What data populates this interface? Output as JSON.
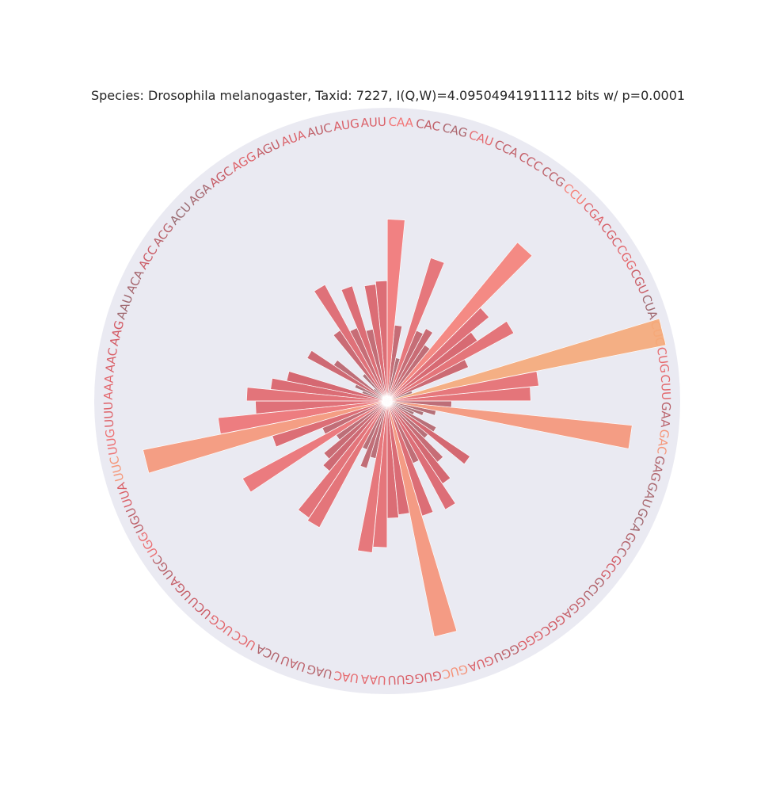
{
  "chart_data": {
    "type": "bar",
    "subtype": "polar",
    "title": "Species: Drosophila melanogaster, Taxid: 7227, I(Q,W)=4.09504941911112 bits w/ p=0.0001",
    "xlabel": "",
    "ylabel": "",
    "grid": false,
    "legend": "none",
    "ylim": [
      0,
      1
    ],
    "colors": {
      "background_circle": "#eaeaf2",
      "low": "#8e6e74",
      "mid": "#d35a64",
      "high": "#f57878",
      "peak": "#f5a878"
    },
    "categories": [
      "AUU",
      "AUG",
      "AUC",
      "AUA",
      "AGU",
      "AGG",
      "AGC",
      "AGA",
      "ACU",
      "ACG",
      "ACC",
      "ACA",
      "AAU",
      "AAG",
      "AAC",
      "AAA",
      "UUU",
      "UUG",
      "UUC",
      "UUA",
      "UGU",
      "UGG",
      "UGC",
      "UGA",
      "UCU",
      "UCG",
      "UCC",
      "UCA",
      "UAU",
      "UAG",
      "UAC",
      "UAA",
      "GUU",
      "GUG",
      "GUC",
      "GUA",
      "GGU",
      "GGG",
      "GGC",
      "GGA",
      "GCU",
      "GCG",
      "GCC",
      "GCA",
      "GAU",
      "GAG",
      "GAC",
      "GAA",
      "CUU",
      "CUG",
      "CUC",
      "CUA",
      "CGU",
      "CGG",
      "CGC",
      "CGA",
      "CCU",
      "CCG",
      "CCC",
      "CCA",
      "CAU",
      "CAG",
      "CAC",
      "CAA"
    ],
    "values": [
      0.41,
      0.4,
      0.25,
      0.41,
      0.27,
      0.45,
      0.29,
      0.12,
      0.06,
      0.22,
      0.31,
      0.12,
      0.09,
      0.35,
      0.4,
      0.48,
      0.45,
      0.58,
      0.85,
      0.41,
      0.24,
      0.56,
      0.21,
      0.28,
      0.31,
      0.48,
      0.49,
      0.18,
      0.24,
      0.2,
      0.52,
      0.5,
      0.4,
      0.39,
      0.82,
      0.41,
      0.23,
      0.42,
      0.34,
      0.27,
      0.18,
      0.34,
      0.19,
      0.1,
      0.13,
      0.17,
      0.84,
      0.22,
      0.49,
      0.52,
      0.97,
      0.09,
      0.3,
      0.49,
      0.37,
      0.45,
      0.7,
      0.23,
      0.28,
      0.26,
      0.51,
      0.15,
      0.26,
      0.62
    ]
  }
}
